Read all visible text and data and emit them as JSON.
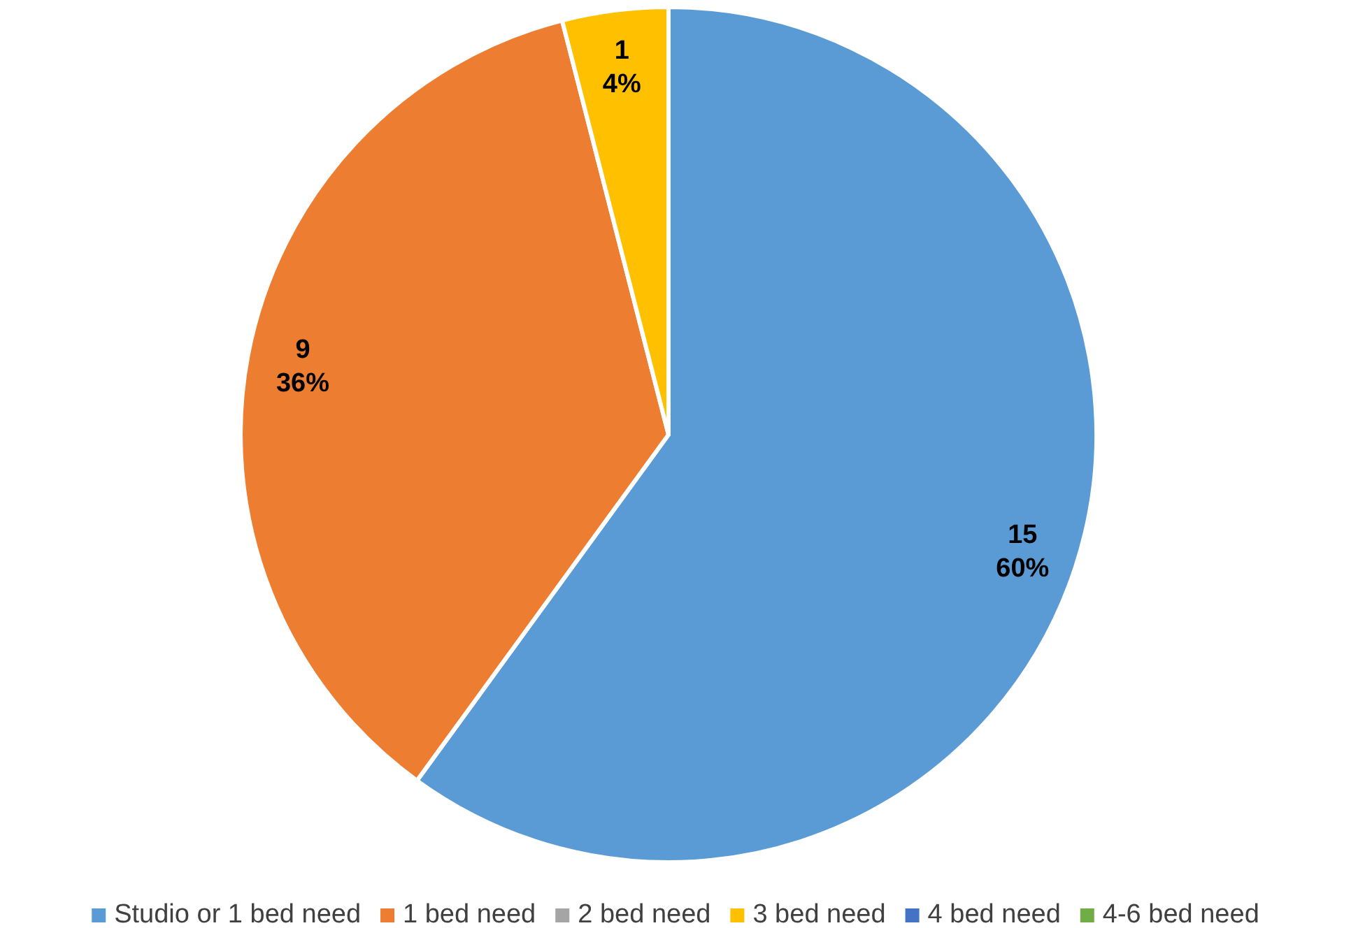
{
  "chart_data": {
    "type": "pie",
    "categories": [
      "Studio or 1 bed need",
      "1 bed need",
      "2 bed need",
      "3 bed need",
      "4 bed need",
      "4-6 bed need"
    ],
    "values": [
      15,
      9,
      0,
      1,
      0,
      0
    ],
    "colors": [
      "#5b9bd5",
      "#ed7d31",
      "#a5a5a5",
      "#ffc000",
      "#4472c4",
      "#70ad47"
    ],
    "value_labels": [
      "15\n60%",
      "9\n36%",
      null,
      "1\n4%",
      null,
      null
    ],
    "legend": "bottom"
  }
}
